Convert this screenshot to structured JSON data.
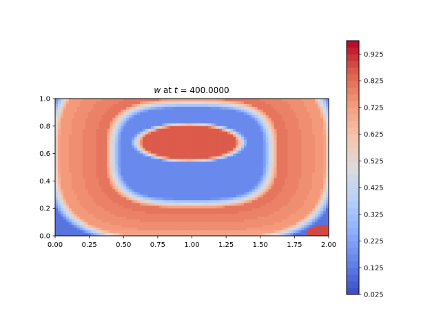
{
  "chart_data": {
    "type": "heatmap",
    "title": {
      "var": "w",
      "mid": " at ",
      "tvar": "t",
      "eq": " = ",
      "value": "400.0000"
    },
    "xlim": [
      0.0,
      2.0
    ],
    "ylim": [
      0.0,
      1.0
    ],
    "x_ticks": [
      "0.00",
      "0.25",
      "0.50",
      "0.75",
      "1.00",
      "1.25",
      "1.50",
      "1.75",
      "2.00"
    ],
    "y_ticks": [
      "0.0",
      "0.2",
      "0.4",
      "0.6",
      "0.8",
      "1.0"
    ],
    "colorbar": {
      "colormap": "coolwarm",
      "range": [
        0.025,
        0.975
      ],
      "levels": 38,
      "ticks": [
        "0.025",
        "0.125",
        "0.225",
        "0.325",
        "0.425",
        "0.525",
        "0.625",
        "0.725",
        "0.825",
        "0.925"
      ]
    },
    "field_description": "two-layer ring pattern: low outer border, high outer ring, low inner ring, high central ellipse, small high spot at lower-right corner",
    "colors": {
      "low": "#3b4cc0",
      "mid": "#dddcdc",
      "high": "#b40426"
    }
  }
}
